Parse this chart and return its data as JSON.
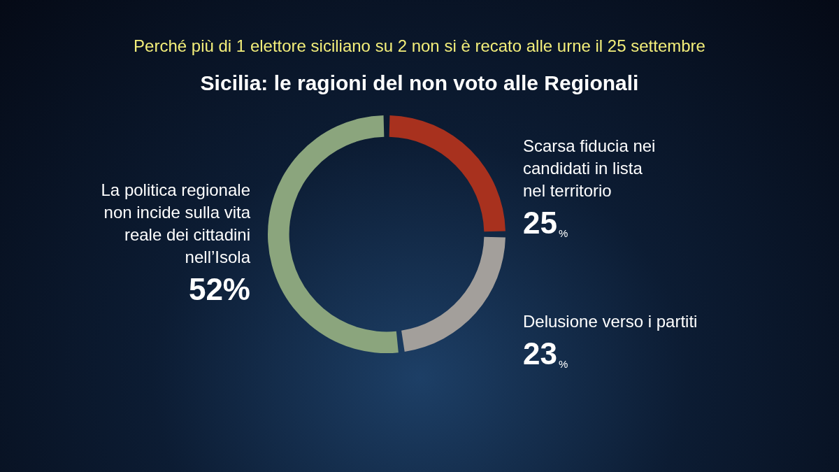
{
  "chart_data": {
    "type": "donut",
    "subtitle": "Perché più di 1 elettore siciliano su 2 non si è recato alle urne il 25 settembre",
    "title": "Sicilia: le ragioni del non voto alle Regionali",
    "categories": [
      "Scarsa fiducia nei candidati in lista nel territorio",
      "Delusione verso i partiti",
      "La politica regionale non incide sulla vita reale dei cittadini nell’Isola"
    ],
    "values": [
      25,
      23,
      52
    ],
    "colors": [
      "#a8311e",
      "#a39f9b",
      "#8ba57d"
    ],
    "value_labels": [
      "25%",
      "23%",
      "52%"
    ],
    "legend": false
  }
}
